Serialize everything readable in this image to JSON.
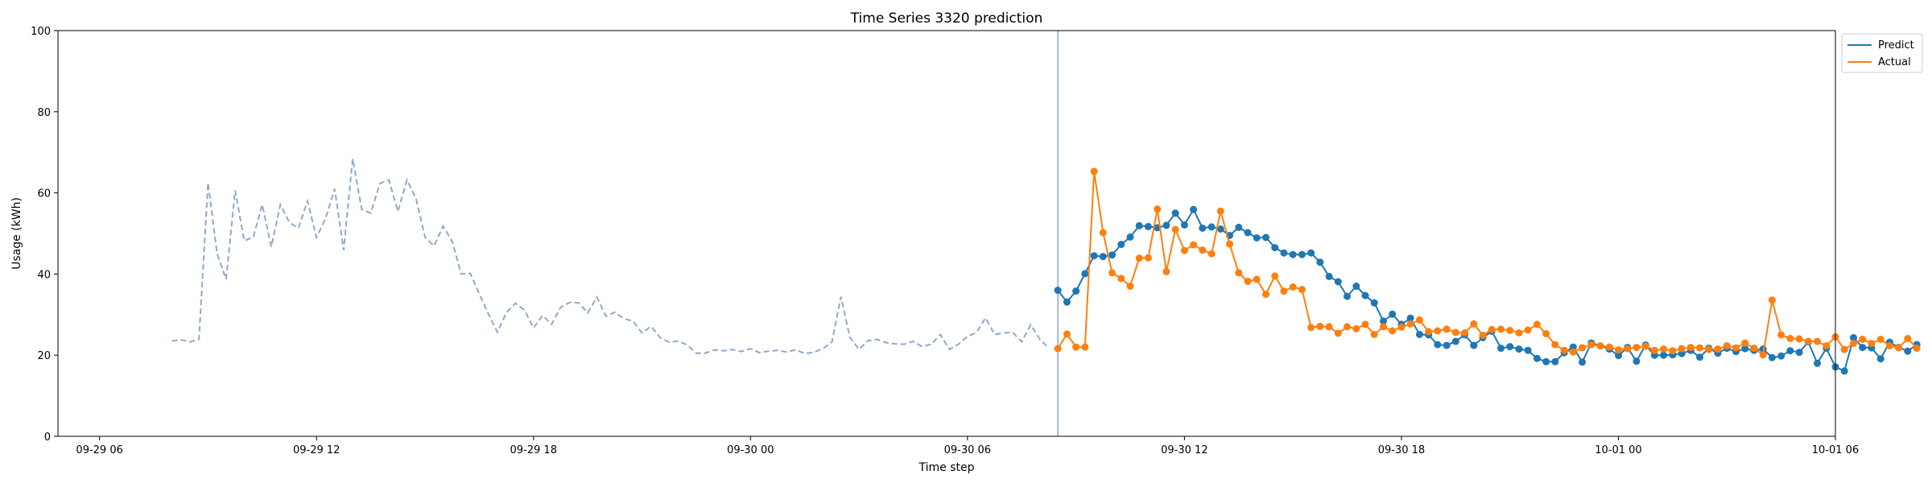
{
  "chart_data": {
    "type": "line",
    "title": "Time Series 3320 prediction",
    "xlabel": "Time step",
    "ylabel": "Usage (kWh)",
    "ylim": [
      0,
      100
    ],
    "yticks": [
      0,
      20,
      40,
      60,
      80,
      100
    ],
    "xlim": [
      -2.3,
      96
    ],
    "xticks": [
      {
        "pos": 0,
        "label": "09-29 06"
      },
      {
        "pos": 12,
        "label": "09-29 12"
      },
      {
        "pos": 24,
        "label": "09-29 18"
      },
      {
        "pos": 36,
        "label": "09-30 00"
      },
      {
        "pos": 48,
        "label": "09-30 06"
      },
      {
        "pos": 60,
        "label": "09-30 12"
      },
      {
        "pos": 72,
        "label": "09-30 18"
      },
      {
        "pos": 84,
        "label": "10-01 00"
      },
      {
        "pos": 96,
        "label": "10-01 06"
      }
    ],
    "history": {
      "x0": 4,
      "step": 0.5,
      "values": [
        23.5,
        23.8,
        23.3,
        23.9,
        62.5,
        45.0,
        38.7,
        60.6,
        48.2,
        49.1,
        57.1,
        46.7,
        57.1,
        52.7,
        51.3,
        58.0,
        49.0,
        53.7,
        61.0,
        45.9,
        68.4,
        55.9,
        55.0,
        62.3,
        63.2,
        55.4,
        63.2,
        58.7,
        49.1,
        46.9,
        51.8,
        48.1,
        40.0,
        40.2,
        35.1,
        30.2,
        25.7,
        30.5,
        32.8,
        31.1,
        26.7,
        29.8,
        27.6,
        31.8,
        33.0,
        32.9,
        30.4,
        34.3,
        29.6,
        30.6,
        29.0,
        28.4,
        25.5,
        27.1,
        24.3,
        23.2,
        23.5,
        22.5,
        20.5,
        20.5,
        21.3,
        21.1,
        21.4,
        20.9,
        21.6,
        20.6,
        21.0,
        21.2,
        20.8,
        21.3,
        20.4,
        20.7,
        21.6,
        23.2,
        34.4,
        24.4,
        21.4,
        23.6,
        23.9,
        23.1,
        22.8,
        22.7,
        23.4,
        22.1,
        22.7,
        25.1,
        21.4,
        22.7,
        24.6,
        25.6,
        29.2,
        25.1,
        25.5,
        25.6,
        23.3,
        27.5,
        23.9,
        21.7
      ]
    },
    "forecast_start": 53,
    "forecast_line_color": "#8da4d4",
    "history_color": "#8fa8cf",
    "series": [
      {
        "name": "Predict",
        "color": "#1f77b4",
        "x0": 53,
        "step": 0.5,
        "values": [
          36.0,
          33.1,
          35.8,
          40.1,
          44.5,
          44.3,
          44.7,
          47.3,
          49.1,
          51.9,
          51.7,
          51.4,
          52.0,
          55.0,
          52.1,
          55.9,
          51.3,
          51.6,
          51.1,
          49.5,
          51.5,
          50.2,
          48.9,
          49.0,
          46.5,
          45.2,
          44.8,
          44.8,
          45.2,
          42.9,
          39.4,
          38.1,
          34.5,
          37.0,
          34.7,
          32.9,
          28.4,
          30.1,
          27.6,
          29.1,
          25.1,
          25.0,
          22.6,
          22.4,
          23.4,
          25.0,
          22.4,
          24.3,
          25.9,
          21.7,
          22.1,
          21.5,
          21.2,
          19.2,
          18.4,
          18.4,
          20.6,
          22.0,
          18.3,
          23.0,
          22.3,
          21.5,
          19.9,
          21.9,
          18.5,
          22.5,
          20.0,
          20.0,
          20.1,
          20.4,
          21.2,
          19.5,
          21.7,
          20.5,
          21.7,
          20.9,
          21.6,
          21.2,
          21.5,
          19.4,
          19.8,
          21.1,
          20.7,
          23.3,
          18.0,
          21.7,
          17.1,
          16.1,
          24.3,
          21.9,
          21.8,
          19.1,
          23.2,
          21.9,
          21.0,
          22.6
        ]
      },
      {
        "name": "Actual",
        "color": "#ff7f0e",
        "x0": 53,
        "step": 0.5,
        "values": [
          21.6,
          25.2,
          22.0,
          22.0,
          65.3,
          50.2,
          40.3,
          38.9,
          37.0,
          43.9,
          44.0,
          56.0,
          40.6,
          51.0,
          45.8,
          47.2,
          45.9,
          45.0,
          55.5,
          47.4,
          40.3,
          38.2,
          38.7,
          35.0,
          39.5,
          35.8,
          36.8,
          36.2,
          26.8,
          27.1,
          27.0,
          25.4,
          27.0,
          26.5,
          27.6,
          25.1,
          27.0,
          26.0,
          26.9,
          27.7,
          28.7,
          25.8,
          26.0,
          26.4,
          25.6,
          25.5,
          27.7,
          24.9,
          26.3,
          26.4,
          26.1,
          25.5,
          26.2,
          27.6,
          25.3,
          22.6,
          21.2,
          20.8,
          21.8,
          22.6,
          22.3,
          22.0,
          21.3,
          21.6,
          21.9,
          22.2,
          21.2,
          21.5,
          21.1,
          21.6,
          21.9,
          21.8,
          21.4,
          21.5,
          22.3,
          21.8,
          23.0,
          21.7,
          20.1,
          33.6,
          25.0,
          24.1,
          24.0,
          23.4,
          23.4,
          22.3,
          24.5,
          21.4,
          22.9,
          23.9,
          22.9,
          23.9,
          22.3,
          21.8,
          24.1,
          21.7
        ]
      }
    ],
    "legend": "top-right",
    "grid": false
  }
}
